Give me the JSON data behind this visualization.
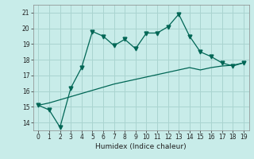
{
  "title": "",
  "xlabel": "Humidex (Indice chaleur)",
  "background_color": "#c8ece9",
  "grid_color": "#aad4d0",
  "line_color": "#006655",
  "xlim": [
    -0.5,
    19.5
  ],
  "ylim": [
    13.5,
    21.5
  ],
  "xticks": [
    0,
    1,
    2,
    3,
    4,
    5,
    6,
    7,
    8,
    9,
    10,
    11,
    12,
    13,
    14,
    15,
    16,
    17,
    18,
    19
  ],
  "yticks": [
    14,
    15,
    16,
    17,
    18,
    19,
    20,
    21
  ],
  "humidex_x": [
    0,
    1,
    2,
    3,
    4,
    5,
    6,
    7,
    8,
    9,
    10,
    11,
    12,
    13,
    14,
    15,
    16,
    17,
    18,
    19
  ],
  "line1_y": [
    15.1,
    14.8,
    13.7,
    16.2,
    17.5,
    19.8,
    19.5,
    18.9,
    19.3,
    18.7,
    19.7,
    19.7,
    20.1,
    20.9,
    19.5,
    18.5,
    18.2,
    17.8,
    17.6,
    17.8
  ],
  "line2_y": [
    15.1,
    15.25,
    15.45,
    15.65,
    15.85,
    16.05,
    16.25,
    16.45,
    16.6,
    16.75,
    16.9,
    17.05,
    17.2,
    17.35,
    17.5,
    17.35,
    17.5,
    17.6,
    17.65,
    17.8
  ]
}
